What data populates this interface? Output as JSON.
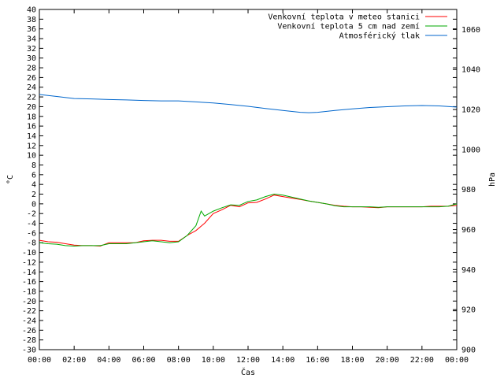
{
  "chart_data": {
    "type": "line",
    "xlabel": "Čas",
    "ylabel": "°C",
    "y2label": "hPa",
    "x_ticks": [
      "00:00",
      "02:00",
      "04:00",
      "06:00",
      "08:00",
      "10:00",
      "12:00",
      "14:00",
      "16:00",
      "18:00",
      "20:00",
      "22:00",
      "00:00"
    ],
    "xlim": [
      0,
      24
    ],
    "ylim": [
      -30,
      40
    ],
    "y_ticks": [
      40,
      38,
      36,
      34,
      32,
      30,
      28,
      26,
      24,
      22,
      20,
      18,
      16,
      14,
      12,
      10,
      8,
      6,
      4,
      2,
      0,
      -2,
      -4,
      -6,
      -8,
      -10,
      -12,
      -14,
      -16,
      -18,
      -20,
      -22,
      -24,
      -26,
      -28,
      -30
    ],
    "y2lim": [
      900,
      1070
    ],
    "y2_ticks": [
      1060,
      1040,
      1020,
      1000,
      980,
      960,
      940,
      920,
      900
    ],
    "grid": false,
    "legend_position": "top-right",
    "series": [
      {
        "name": "Venkovní teplota v meteo stanici",
        "color": "#ff0000",
        "axis": "y",
        "x": [
          0,
          0.5,
          1,
          1.5,
          2,
          2.5,
          3,
          3.5,
          4,
          4.5,
          5,
          5.5,
          6,
          6.5,
          7,
          7.5,
          8,
          8.5,
          9,
          9.5,
          10,
          10.5,
          11,
          11.5,
          12,
          12.5,
          13,
          13.5,
          14,
          14.5,
          15,
          15.5,
          16,
          16.5,
          17,
          17.5,
          18,
          18.5,
          19,
          19.5,
          20,
          20.5,
          21,
          21.5,
          22,
          22.5,
          23,
          23.5,
          24
        ],
        "values": [
          -7.5,
          -7.8,
          -7.9,
          -8.2,
          -8.5,
          -8.6,
          -8.6,
          -8.7,
          -8.0,
          -8.0,
          -8.0,
          -8.0,
          -7.6,
          -7.5,
          -7.5,
          -7.7,
          -7.7,
          -6.5,
          -5.5,
          -4.0,
          -2.0,
          -1.2,
          -0.3,
          -0.6,
          0.2,
          0.3,
          1.0,
          1.8,
          1.5,
          1.2,
          0.9,
          0.6,
          0.3,
          0.0,
          -0.3,
          -0.5,
          -0.6,
          -0.6,
          -0.7,
          -0.8,
          -0.6,
          -0.6,
          -0.6,
          -0.6,
          -0.6,
          -0.5,
          -0.5,
          -0.5,
          -0.3
        ]
      },
      {
        "name": "Venkovní teplota 5 cm nad zemí",
        "color": "#00aa00",
        "axis": "y",
        "x": [
          0,
          0.5,
          1,
          1.5,
          2,
          2.5,
          3,
          3.5,
          4,
          4.5,
          5,
          5.5,
          6,
          6.5,
          7,
          7.5,
          8,
          8.5,
          9,
          9.3,
          9.5,
          10,
          10.5,
          11,
          11.5,
          12,
          12.5,
          13,
          13.5,
          14,
          14.5,
          15,
          15.5,
          16,
          16.5,
          17,
          17.5,
          18,
          18.5,
          19,
          19.5,
          20,
          20.5,
          21,
          21.5,
          22,
          22.5,
          23,
          23.5,
          24
        ],
        "values": [
          -8.0,
          -8.2,
          -8.3,
          -8.6,
          -8.7,
          -8.6,
          -8.6,
          -8.6,
          -8.2,
          -8.2,
          -8.2,
          -8.0,
          -7.8,
          -7.6,
          -7.8,
          -8.0,
          -7.8,
          -6.5,
          -4.5,
          -1.5,
          -2.5,
          -1.5,
          -0.8,
          -0.2,
          -0.3,
          0.5,
          0.8,
          1.5,
          2.0,
          1.8,
          1.4,
          1.0,
          0.6,
          0.3,
          0.0,
          -0.4,
          -0.6,
          -0.6,
          -0.6,
          -0.6,
          -0.7,
          -0.6,
          -0.6,
          -0.6,
          -0.6,
          -0.6,
          -0.6,
          -0.6,
          -0.5,
          0.0
        ]
      },
      {
        "name": "Atmosférický tlak",
        "color": "#0066cc",
        "axis": "y2",
        "x": [
          0,
          1,
          2,
          3,
          4,
          5,
          6,
          7,
          8,
          9,
          10,
          11,
          12,
          13,
          14,
          15,
          15.5,
          16,
          17,
          18,
          19,
          20,
          21,
          22,
          23,
          24
        ],
        "values": [
          1027.5,
          1026.5,
          1025.5,
          1025.3,
          1025,
          1024.8,
          1024.5,
          1024.3,
          1024.3,
          1023.8,
          1023.3,
          1022.5,
          1021.6,
          1020.5,
          1019.5,
          1018.6,
          1018.4,
          1018.6,
          1019.5,
          1020.3,
          1021,
          1021.4,
          1021.8,
          1022,
          1021.8,
          1021.2
        ]
      }
    ]
  }
}
